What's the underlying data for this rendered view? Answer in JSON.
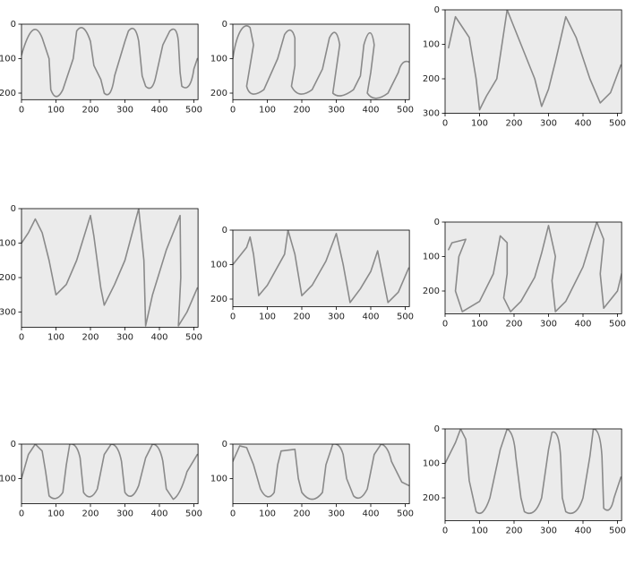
{
  "chart_data": [
    {
      "type": "image",
      "xlim": [
        0,
        512
      ],
      "ylim": [
        0,
        219
      ],
      "y_inverted": true,
      "xticks": [
        0,
        100,
        200,
        300,
        400,
        500
      ],
      "yticks": [
        0,
        100,
        200
      ]
    },
    {
      "type": "image",
      "xlim": [
        0,
        512
      ],
      "ylim": [
        0,
        219
      ],
      "y_inverted": true,
      "xticks": [
        0,
        100,
        200,
        300,
        400,
        500
      ],
      "yticks": [
        0,
        100,
        200
      ]
    },
    {
      "type": "image",
      "xlim": [
        0,
        512
      ],
      "ylim": [
        0,
        300
      ],
      "y_inverted": true,
      "xticks": [
        0,
        100,
        200,
        300,
        400,
        500
      ],
      "yticks": [
        0,
        100,
        200,
        300
      ]
    },
    {
      "type": "image",
      "xlim": [
        0,
        512
      ],
      "ylim": [
        0,
        344
      ],
      "y_inverted": true,
      "xticks": [
        0,
        100,
        200,
        300,
        400,
        500
      ],
      "yticks": [
        0,
        100,
        200,
        300
      ]
    },
    {
      "type": "image",
      "xlim": [
        0,
        512
      ],
      "ylim": [
        0,
        222
      ],
      "y_inverted": true,
      "xticks": [
        0,
        100,
        200,
        300,
        400,
        500
      ],
      "yticks": [
        0,
        100,
        200
      ]
    },
    {
      "type": "image",
      "xlim": [
        0,
        512
      ],
      "ylim": [
        0,
        266
      ],
      "y_inverted": true,
      "xticks": [
        0,
        100,
        200,
        300,
        400,
        500
      ],
      "yticks": [
        0,
        100,
        200
      ]
    },
    {
      "type": "image",
      "xlim": [
        0,
        512
      ],
      "ylim": [
        0,
        173
      ],
      "y_inverted": true,
      "xticks": [
        0,
        100,
        200,
        300,
        400,
        500
      ],
      "yticks": [
        0,
        100
      ]
    },
    {
      "type": "image",
      "xlim": [
        0,
        512
      ],
      "ylim": [
        0,
        173
      ],
      "y_inverted": true,
      "xticks": [
        0,
        100,
        200,
        300,
        400,
        500
      ],
      "yticks": [
        0,
        100
      ]
    },
    {
      "type": "image",
      "xlim": [
        0,
        512
      ],
      "ylim": [
        0,
        266
      ],
      "y_inverted": true,
      "xticks": [
        0,
        100,
        200,
        300,
        400,
        500
      ],
      "yticks": [
        0,
        100,
        200
      ]
    }
  ]
}
